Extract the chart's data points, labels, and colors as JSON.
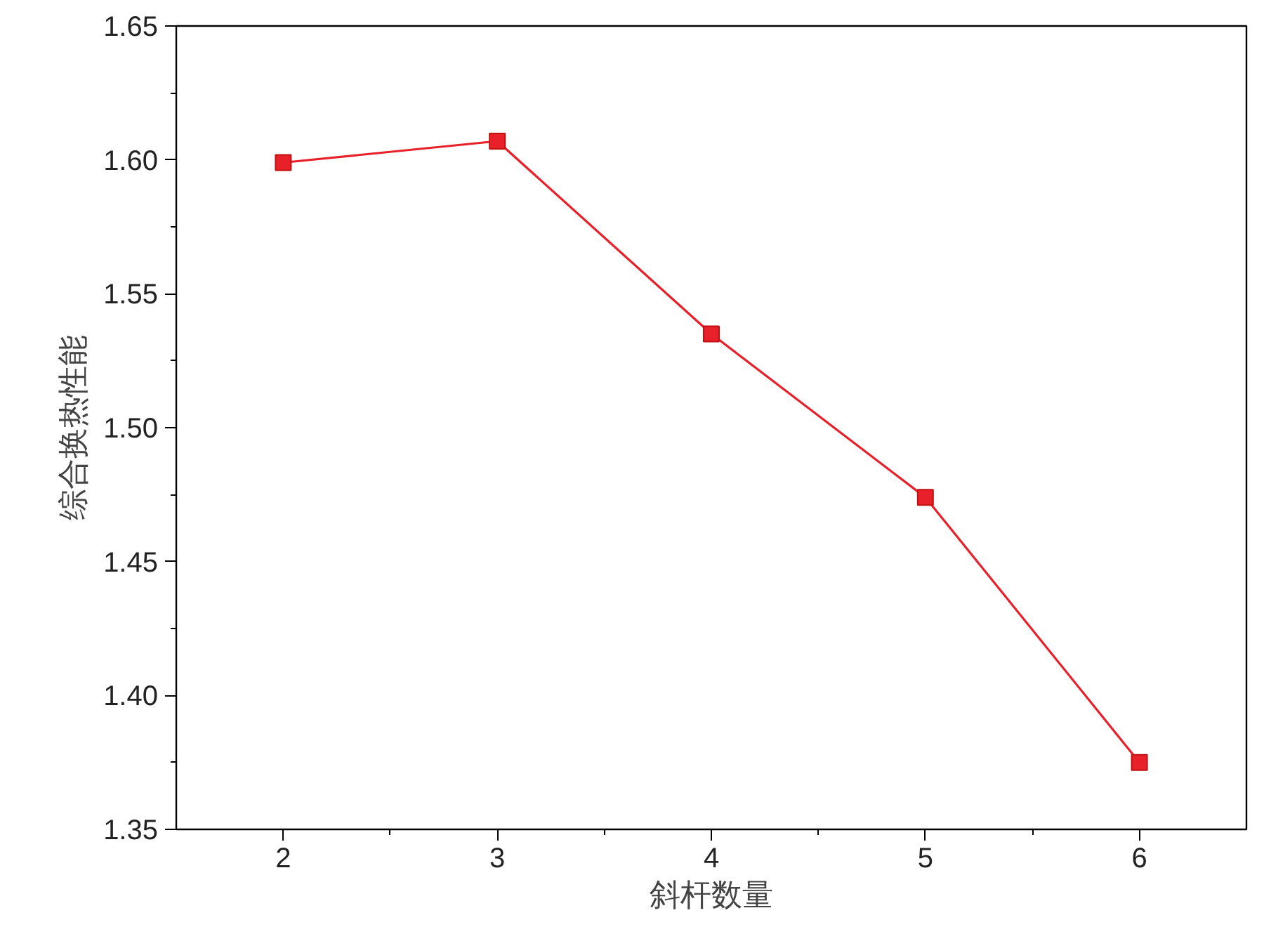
{
  "chart_data": {
    "type": "line",
    "xlabel": "斜杆数量",
    "ylabel": "综合换热性能",
    "x": [
      2,
      3,
      4,
      5,
      6
    ],
    "series": [
      {
        "color": "#e8202a",
        "values": [
          1.599,
          1.607,
          1.535,
          1.474,
          1.375
        ]
      }
    ],
    "xlim": [
      1.5,
      6.5
    ],
    "xticks": [
      2,
      3,
      4,
      5,
      6
    ],
    "ylim": [
      1.35,
      1.65
    ],
    "yticks": [
      {
        "value": 1.35,
        "label": "1.35"
      },
      {
        "value": 1.4,
        "label": "1.40"
      },
      {
        "value": 1.45,
        "label": "1.45"
      },
      {
        "value": 1.5,
        "label": "1.50"
      },
      {
        "value": 1.55,
        "label": "1.55"
      },
      {
        "value": 1.6,
        "label": "1.60"
      },
      {
        "value": 1.65,
        "label": "1.65"
      }
    ],
    "grid": false,
    "marker": "square",
    "line_style": "solid"
  }
}
